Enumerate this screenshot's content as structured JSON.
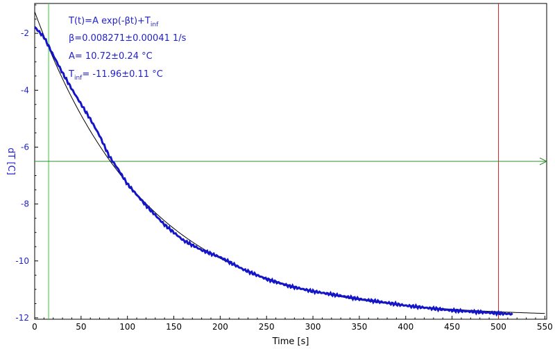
{
  "chart_data": {
    "type": "line",
    "xlabel": "Time [s]",
    "ylabel": "dT [C]",
    "xlim": [
      0,
      552
    ],
    "ylim": [
      -12.05,
      -0.95
    ],
    "x_ticks": [
      0,
      50,
      100,
      150,
      200,
      250,
      300,
      350,
      400,
      450,
      500,
      550
    ],
    "y_ticks": [
      -2,
      -4,
      -6,
      -8,
      -10,
      -12
    ],
    "grid": false,
    "colors": {
      "data": "#1414c8",
      "fit": "#000000",
      "green_marker": "#33cc33",
      "red_marker": "#cc2222",
      "horizontal_line": "#2e8b2e",
      "annotation": "#1f1fcc",
      "axis_label_y": "#1f1fcc"
    },
    "series": [
      {
        "values_x": [
          0,
          10,
          20,
          30,
          40,
          50,
          60,
          70,
          80,
          90,
          100,
          120,
          140,
          160,
          180,
          200,
          225,
          250,
          275,
          300,
          325,
          350,
          375,
          400,
          425,
          450,
          475,
          500,
          515
        ],
        "values_y": [
          -1.78,
          -2.13,
          -2.77,
          -3.39,
          -3.96,
          -4.49,
          -5.02,
          -5.6,
          -6.3,
          -6.78,
          -7.3,
          -8.05,
          -8.73,
          -9.27,
          -9.62,
          -9.87,
          -10.3,
          -10.64,
          -10.89,
          -11.07,
          -11.2,
          -11.34,
          -11.45,
          -11.57,
          -11.66,
          -11.74,
          -11.79,
          -11.84,
          -11.87
        ]
      },
      {
        "fit": {
          "A": 10.72,
          "beta": 0.008271,
          "T_inf": -11.96,
          "x_start": 0,
          "x_end": 550
        }
      }
    ],
    "markers": {
      "vertical_green_x": 15,
      "vertical_red_x": 500,
      "horizontal_y": -6.5
    },
    "annotations": {
      "line1_main": "T(t)=A exp(-βt)+T",
      "line1_sub": "inf",
      "line2": "β=0.008271±0.00041 1/s",
      "line3": "A= 10.72±0.24 °C",
      "line4_main": "T",
      "line4_sub": "inf",
      "line4_rest": "= -11.96±0.11 °C"
    }
  }
}
